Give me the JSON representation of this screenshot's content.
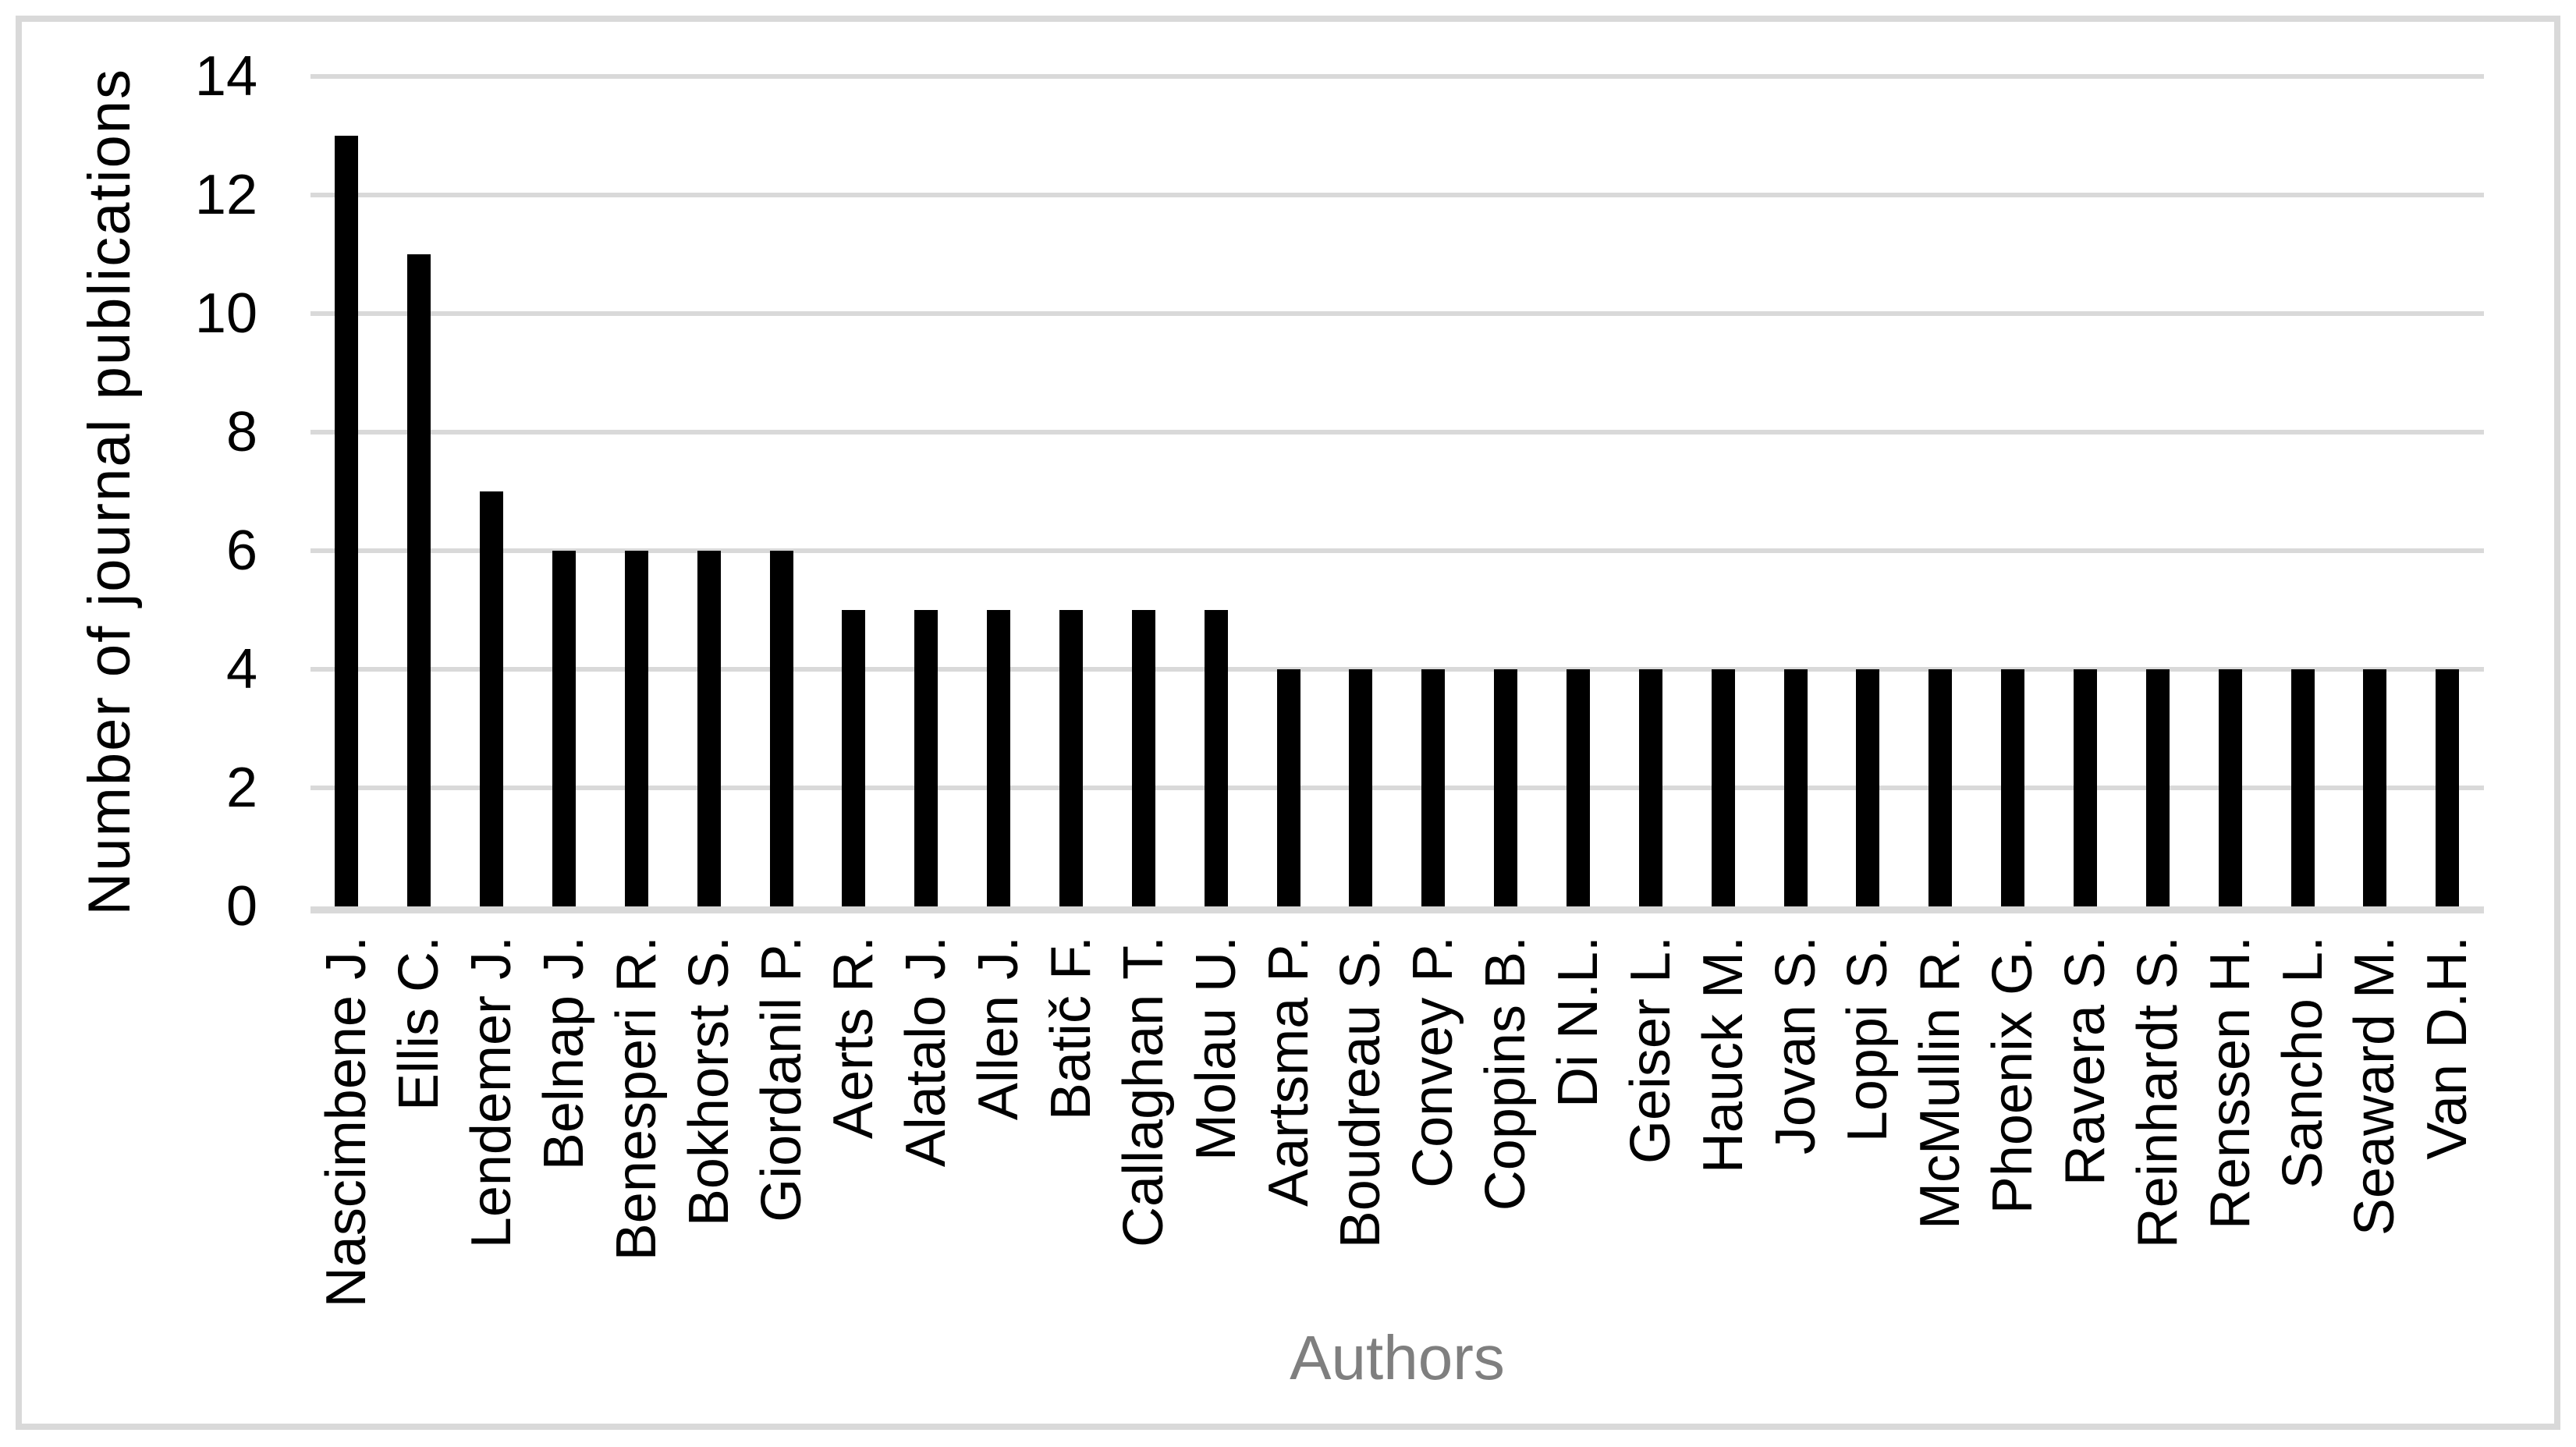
{
  "chart_data": {
    "type": "bar",
    "title": "",
    "xlabel": "Authors",
    "ylabel": "Number of journal publications",
    "categories": [
      "Nascimbene J.",
      "Ellis C.",
      "Lendemer J.",
      "Belnap J.",
      "Benesperi R.",
      "Bokhorst S.",
      "Giordanil P.",
      "Aerts R.",
      "Alatalo J.",
      "Allen J.",
      "Batič F.",
      "Callaghan T.",
      "Molau U.",
      "Aartsma P.",
      "Boudreau S.",
      "Convey P.",
      "Coppins B.",
      "Di N.L.",
      "Geiser L.",
      "Hauck M.",
      "Jovan S.",
      "Loppi S.",
      "McMullin R.",
      "Phoenix G.",
      "Ravera S.",
      "Reinhardt S.",
      "Renssen H.",
      "Sancho L.",
      "Seaward M.",
      "Van D.H."
    ],
    "values": [
      13,
      11,
      7,
      6,
      6,
      6,
      6,
      5,
      5,
      5,
      5,
      5,
      5,
      4,
      4,
      4,
      4,
      4,
      4,
      4,
      4,
      4,
      4,
      4,
      4,
      4,
      4,
      4,
      4,
      4
    ],
    "ylim": [
      0,
      14
    ],
    "yticks": [
      0,
      2,
      4,
      6,
      8,
      10,
      12,
      14
    ],
    "grid": "horizontal",
    "legend": "none",
    "colors": {
      "bar": "#000000",
      "gridline": "#d9d9d9",
      "axis_line": "#d9d9d9",
      "frame_border": "#d9d9d9",
      "y_tick_label": "#000000",
      "x_tick_label": "#000000",
      "y_title": "#000000",
      "x_title": "#7f7f7f"
    }
  }
}
